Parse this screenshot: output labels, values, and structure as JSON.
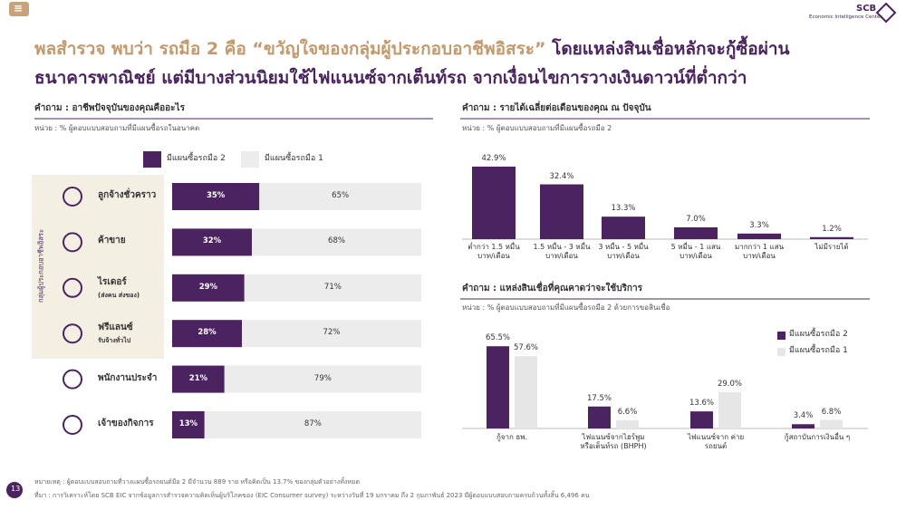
{
  "header": {
    "menu": "≡",
    "logo": "SCB",
    "logo_subtitle": "Economic Intelligence Center",
    "title_parts": [
      "พลสำรวจ พบว่า รถมือ 2 คือ “ขวัญใจของกลุ่มผู้ประกอบอาชีพอิสระ”",
      "โดยแหล่งสินเชื่อหลักจะกู้ซื้อผ่าน",
      "ธนาคารพาณิชย์ แต่มีบางส่วนนิยมใช้ไฟแนนซ์จากเต็นท์รถ จากเงื่อนไขการวางเงินดาวน์ที่ต่ำกว่า"
    ]
  },
  "footer": {
    "page": "13",
    "note": "หมายเหตุ : ผู้ตอบแบบสอบถามที่วางแผนซื้อรถยนต์มือ 2 มีจำนวน 889 ราย หรือคิดเป็น 13.7% ของกลุ่มตัวอย่างทั้งหมด",
    "source": "ที่มา : การวิเคราะห์โดย SCB EIC จากข้อมูลการสำรวจความคิดเห็นผู้บริโภคของ (EIC Consumer survey) ระหว่างวันที่ 19 มกราคม ถึง 2 กุมภาพันธ์ 2023 มีผู้ตอบแบบสอบถามครบถ้วนทั้งสิ้น 6,496 คน"
  },
  "chart_data": [
    {
      "type": "stacked_hbar",
      "title": "คำถาม : อาชีพปัจจุบันของคุณคืออะไร",
      "subtitle": "หน่วย : % ผู้ตอบแบบสอบถามที่มีแผนซื้อรถในอนาคต",
      "group_label": "กลุ่มผู้ประกอบอาชีพอิสระ",
      "categories": [
        "ลูกจ้างชั่วคราว",
        "ค้าขาย",
        "ไรเดอร์",
        "ฟรีแลนซ์",
        "พนักงานประจำ",
        "เจ้าของกิจการ"
      ],
      "category_details": [
        null,
        null,
        "(ส่งคน ส่งของ)",
        "รับจ้างทั่วไป",
        null,
        null
      ],
      "xlim": [
        0,
        100
      ],
      "series": [
        {
          "name": "มีแผนซื้อรถมือ 2",
          "color": "#4a2360",
          "values": [
            35,
            32,
            29,
            28,
            21,
            13
          ],
          "value_labels": [
            "35%",
            "32%",
            "29%",
            "28%",
            "21%",
            "13%"
          ]
        },
        {
          "name": "มีแผนซื้อรถมือ 1",
          "color": "#ececec",
          "values": [
            65,
            68,
            71,
            72,
            79,
            87
          ],
          "value_labels": [
            "65%",
            "68%",
            "71%",
            "72%",
            "79%",
            "87%"
          ]
        }
      ]
    },
    {
      "type": "bar",
      "title": "คำถาม : รายได้เฉลี่ยต่อเดือนของคุณ ณ ปัจจุบัน",
      "subtitle": "หน่วย : % ผู้ตอบแบบสอบถามที่มีแผนซื้อรถมือ 2",
      "categories": [
        "ต่ำกว่า 1.5 หมื่น บาท/เดือน",
        "1.5 หมื่น - 3 หมื่น บาท/เดือน",
        "3 หมื่น - 5 หมื่น บาท/เดือน",
        "5 หมื่น - 1 แสน บาท/เดือน",
        "มากกว่า 1 แสน บาท/เดือน",
        "ไม่มีรายได้"
      ],
      "values": [
        42.9,
        32.4,
        13.3,
        7.0,
        3.3,
        1.2
      ],
      "value_labels": [
        "42.9%",
        "32.4%",
        "13.3%",
        "7.0%",
        "3.3%",
        "1.2%"
      ],
      "color": "#4a2360",
      "ylim": [
        0,
        45
      ]
    },
    {
      "type": "grouped_bar",
      "title": "คำถาม : แหล่งสินเชื่อที่คุณคาดว่าจะใช้บริการ",
      "subtitle": "หน่วย : % ผู้ตอบแบบสอบถามที่มีแผนซื้อรถมือ 2 ด้วยการขอสินเชื่อ",
      "categories": [
        "กู้จาก ธพ.",
        "ไฟแนนซ์จากไฮร์พูม หรือเต็นท์รถ (BHPH)",
        "ไฟแนนซ์จาก ค่ายรถยนต์",
        "กู้สถาบันการเงินอื่น ๆ"
      ],
      "ylim": [
        0,
        70
      ],
      "legend": "top-right",
      "series": [
        {
          "name": "มีแผนซื้อรถมือ 2",
          "color": "#4a2360",
          "values": [
            65.5,
            17.5,
            13.6,
            3.4
          ],
          "value_labels": [
            "65.5%",
            "17.5%",
            "13.6%",
            "3.4%"
          ]
        },
        {
          "name": "มีแผนซื้อรถมือ 1",
          "color": "#e6e6e6",
          "values": [
            57.6,
            6.6,
            29.0,
            6.8
          ],
          "value_labels": [
            "57.6%",
            "6.6%",
            "29.0%",
            "6.8%"
          ]
        }
      ]
    }
  ]
}
